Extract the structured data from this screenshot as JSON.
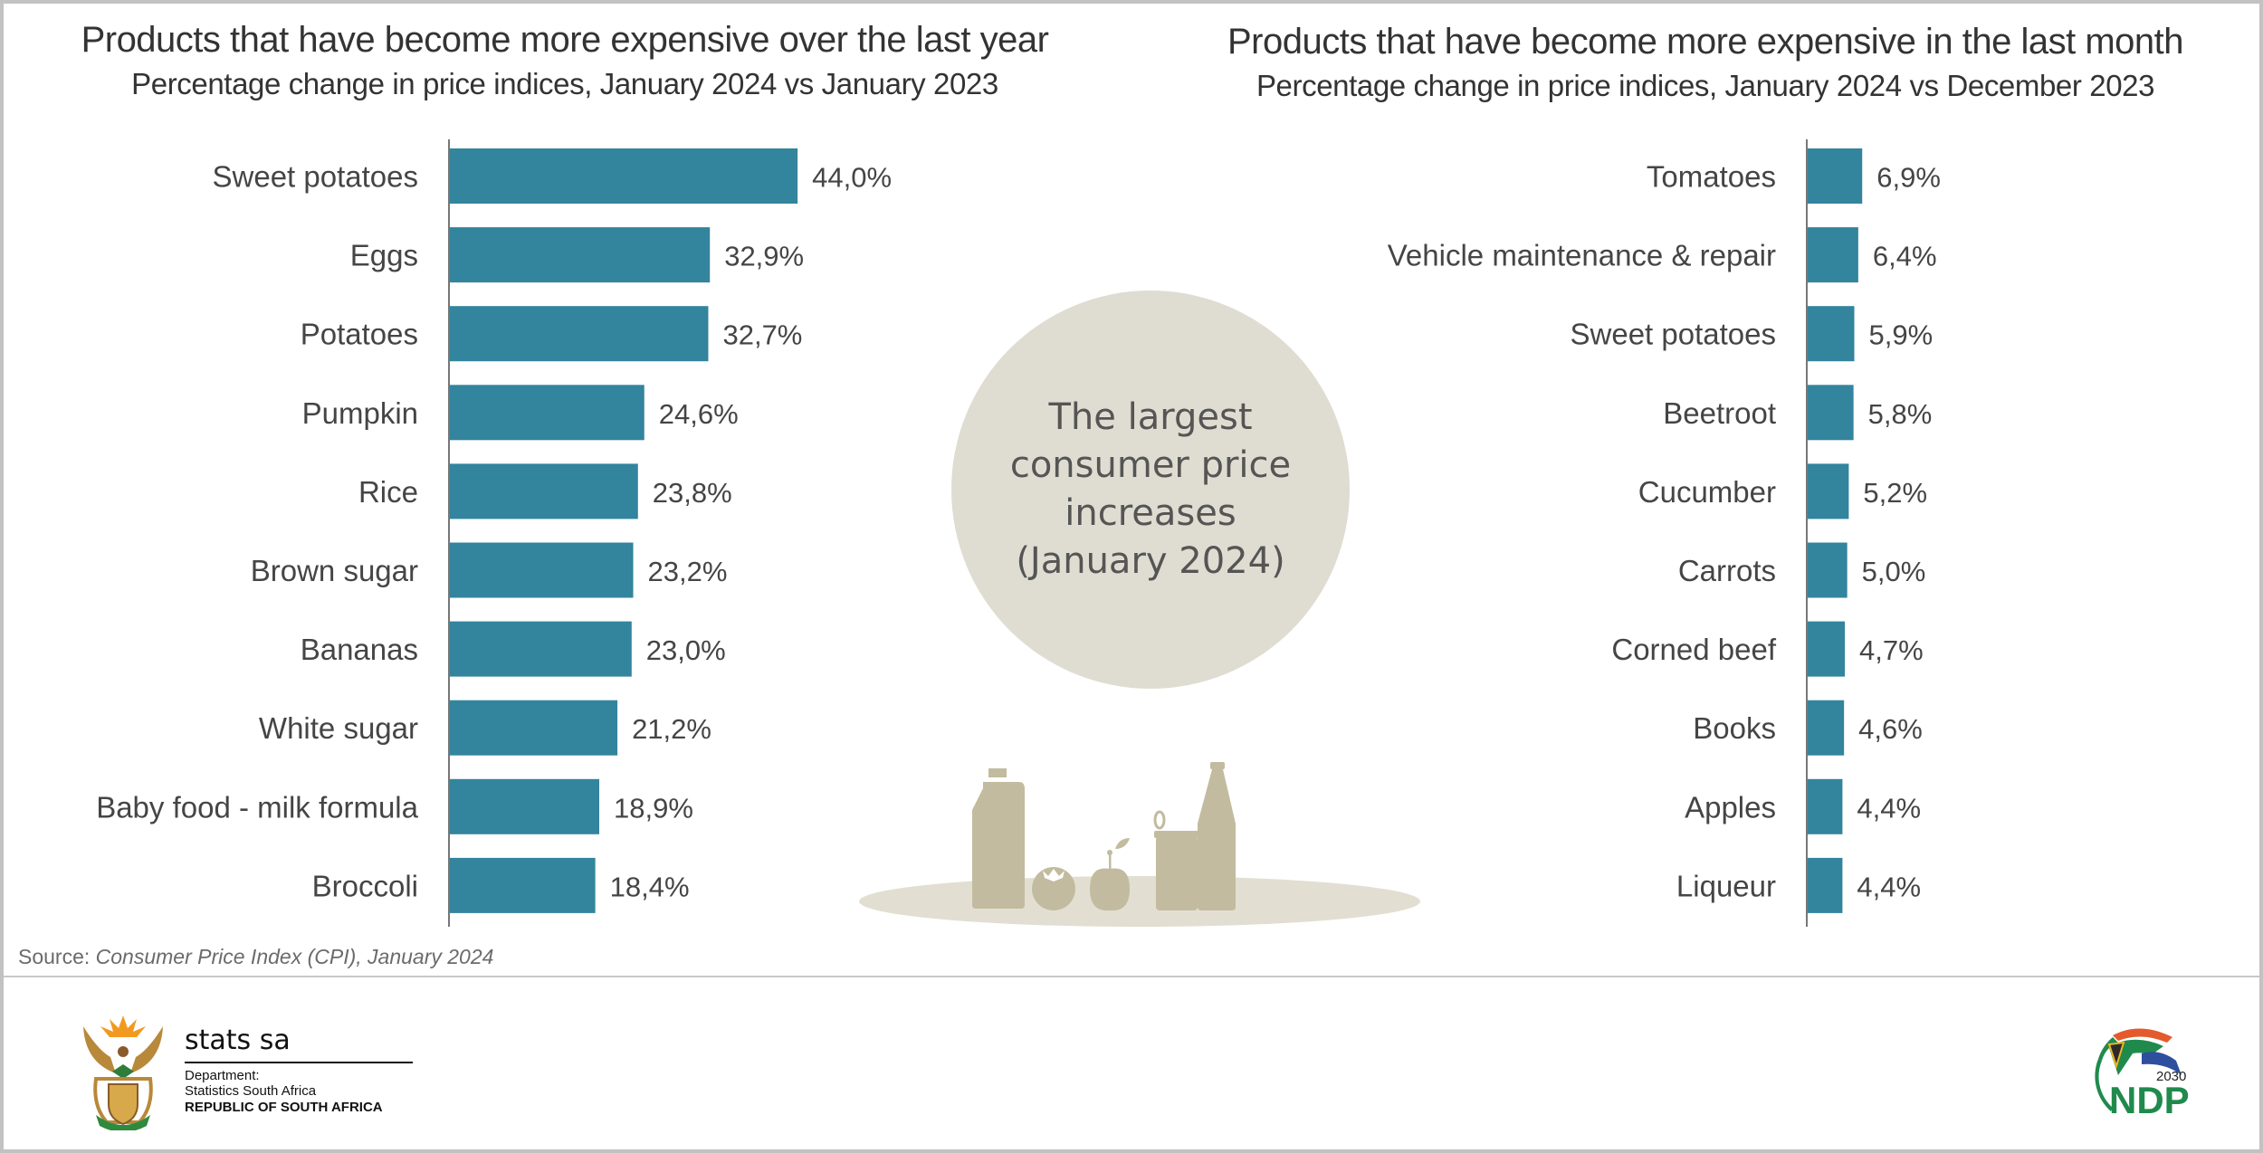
{
  "chart_data": [
    {
      "type": "bar",
      "orientation": "horizontal",
      "title": "Products that have become more expensive over the last year",
      "subtitle": "Percentage change in price indices, January 2024 vs January 2023",
      "xlabel": "",
      "ylabel": "",
      "xlim": [
        0,
        50
      ],
      "grid": false,
      "categories": [
        "Sweet potatoes",
        "Eggs",
        "Potatoes",
        "Pumpkin",
        "Rice",
        "Brown sugar",
        "Bananas",
        "White sugar",
        "Baby food - milk formula",
        "Broccoli"
      ],
      "values": [
        44.0,
        32.9,
        32.7,
        24.6,
        23.8,
        23.2,
        23.0,
        21.2,
        18.9,
        18.4
      ],
      "data_labels": [
        "44,0%",
        "32,9%",
        "32,7%",
        "24,6%",
        "23,8%",
        "23,2%",
        "23,0%",
        "21,2%",
        "18,9%",
        "18,4%"
      ],
      "unit": "%",
      "color": "#33849d"
    },
    {
      "type": "bar",
      "orientation": "horizontal",
      "title": "Products that have become more expensive in the last month",
      "subtitle": "Percentage change in price indices, January 2024 vs December 2023",
      "xlabel": "",
      "ylabel": "",
      "xlim": [
        0,
        50
      ],
      "grid": false,
      "categories": [
        "Tomatoes",
        "Vehicle maintenance & repair",
        "Sweet potatoes",
        "Beetroot",
        "Cucumber",
        "Carrots",
        "Corned beef",
        "Books",
        "Apples",
        "Liqueur"
      ],
      "values": [
        6.9,
        6.4,
        5.9,
        5.8,
        5.2,
        5.0,
        4.7,
        4.6,
        4.4,
        4.4
      ],
      "data_labels": [
        "6,9%",
        "6,4%",
        "5,9%",
        "5,8%",
        "5,2%",
        "5,0%",
        "4,7%",
        "4,6%",
        "4,4%",
        "4,4%"
      ],
      "unit": "%",
      "color": "#33849d"
    }
  ],
  "center_callout": {
    "lines": [
      "The largest",
      "consumer price",
      "increases",
      "(January 2024)"
    ]
  },
  "source": {
    "label": "Source: ",
    "value": "Consumer Price Index (CPI), January 2024"
  },
  "footer": {
    "stats_logo": {
      "name": "stats sa",
      "department": "Department:",
      "organisation": "Statistics South Africa",
      "country": "REPUBLIC OF SOUTH AFRICA"
    },
    "ndp_logo": {
      "year": "2030",
      "text": "NDP"
    }
  },
  "colors": {
    "bar": "#33849d",
    "axis": "#777777",
    "text": "#444444",
    "circle": "#dfddd1",
    "illustration": "#c2bb9f",
    "plate": "#e2dfd2",
    "border": "#c2c2c2"
  }
}
